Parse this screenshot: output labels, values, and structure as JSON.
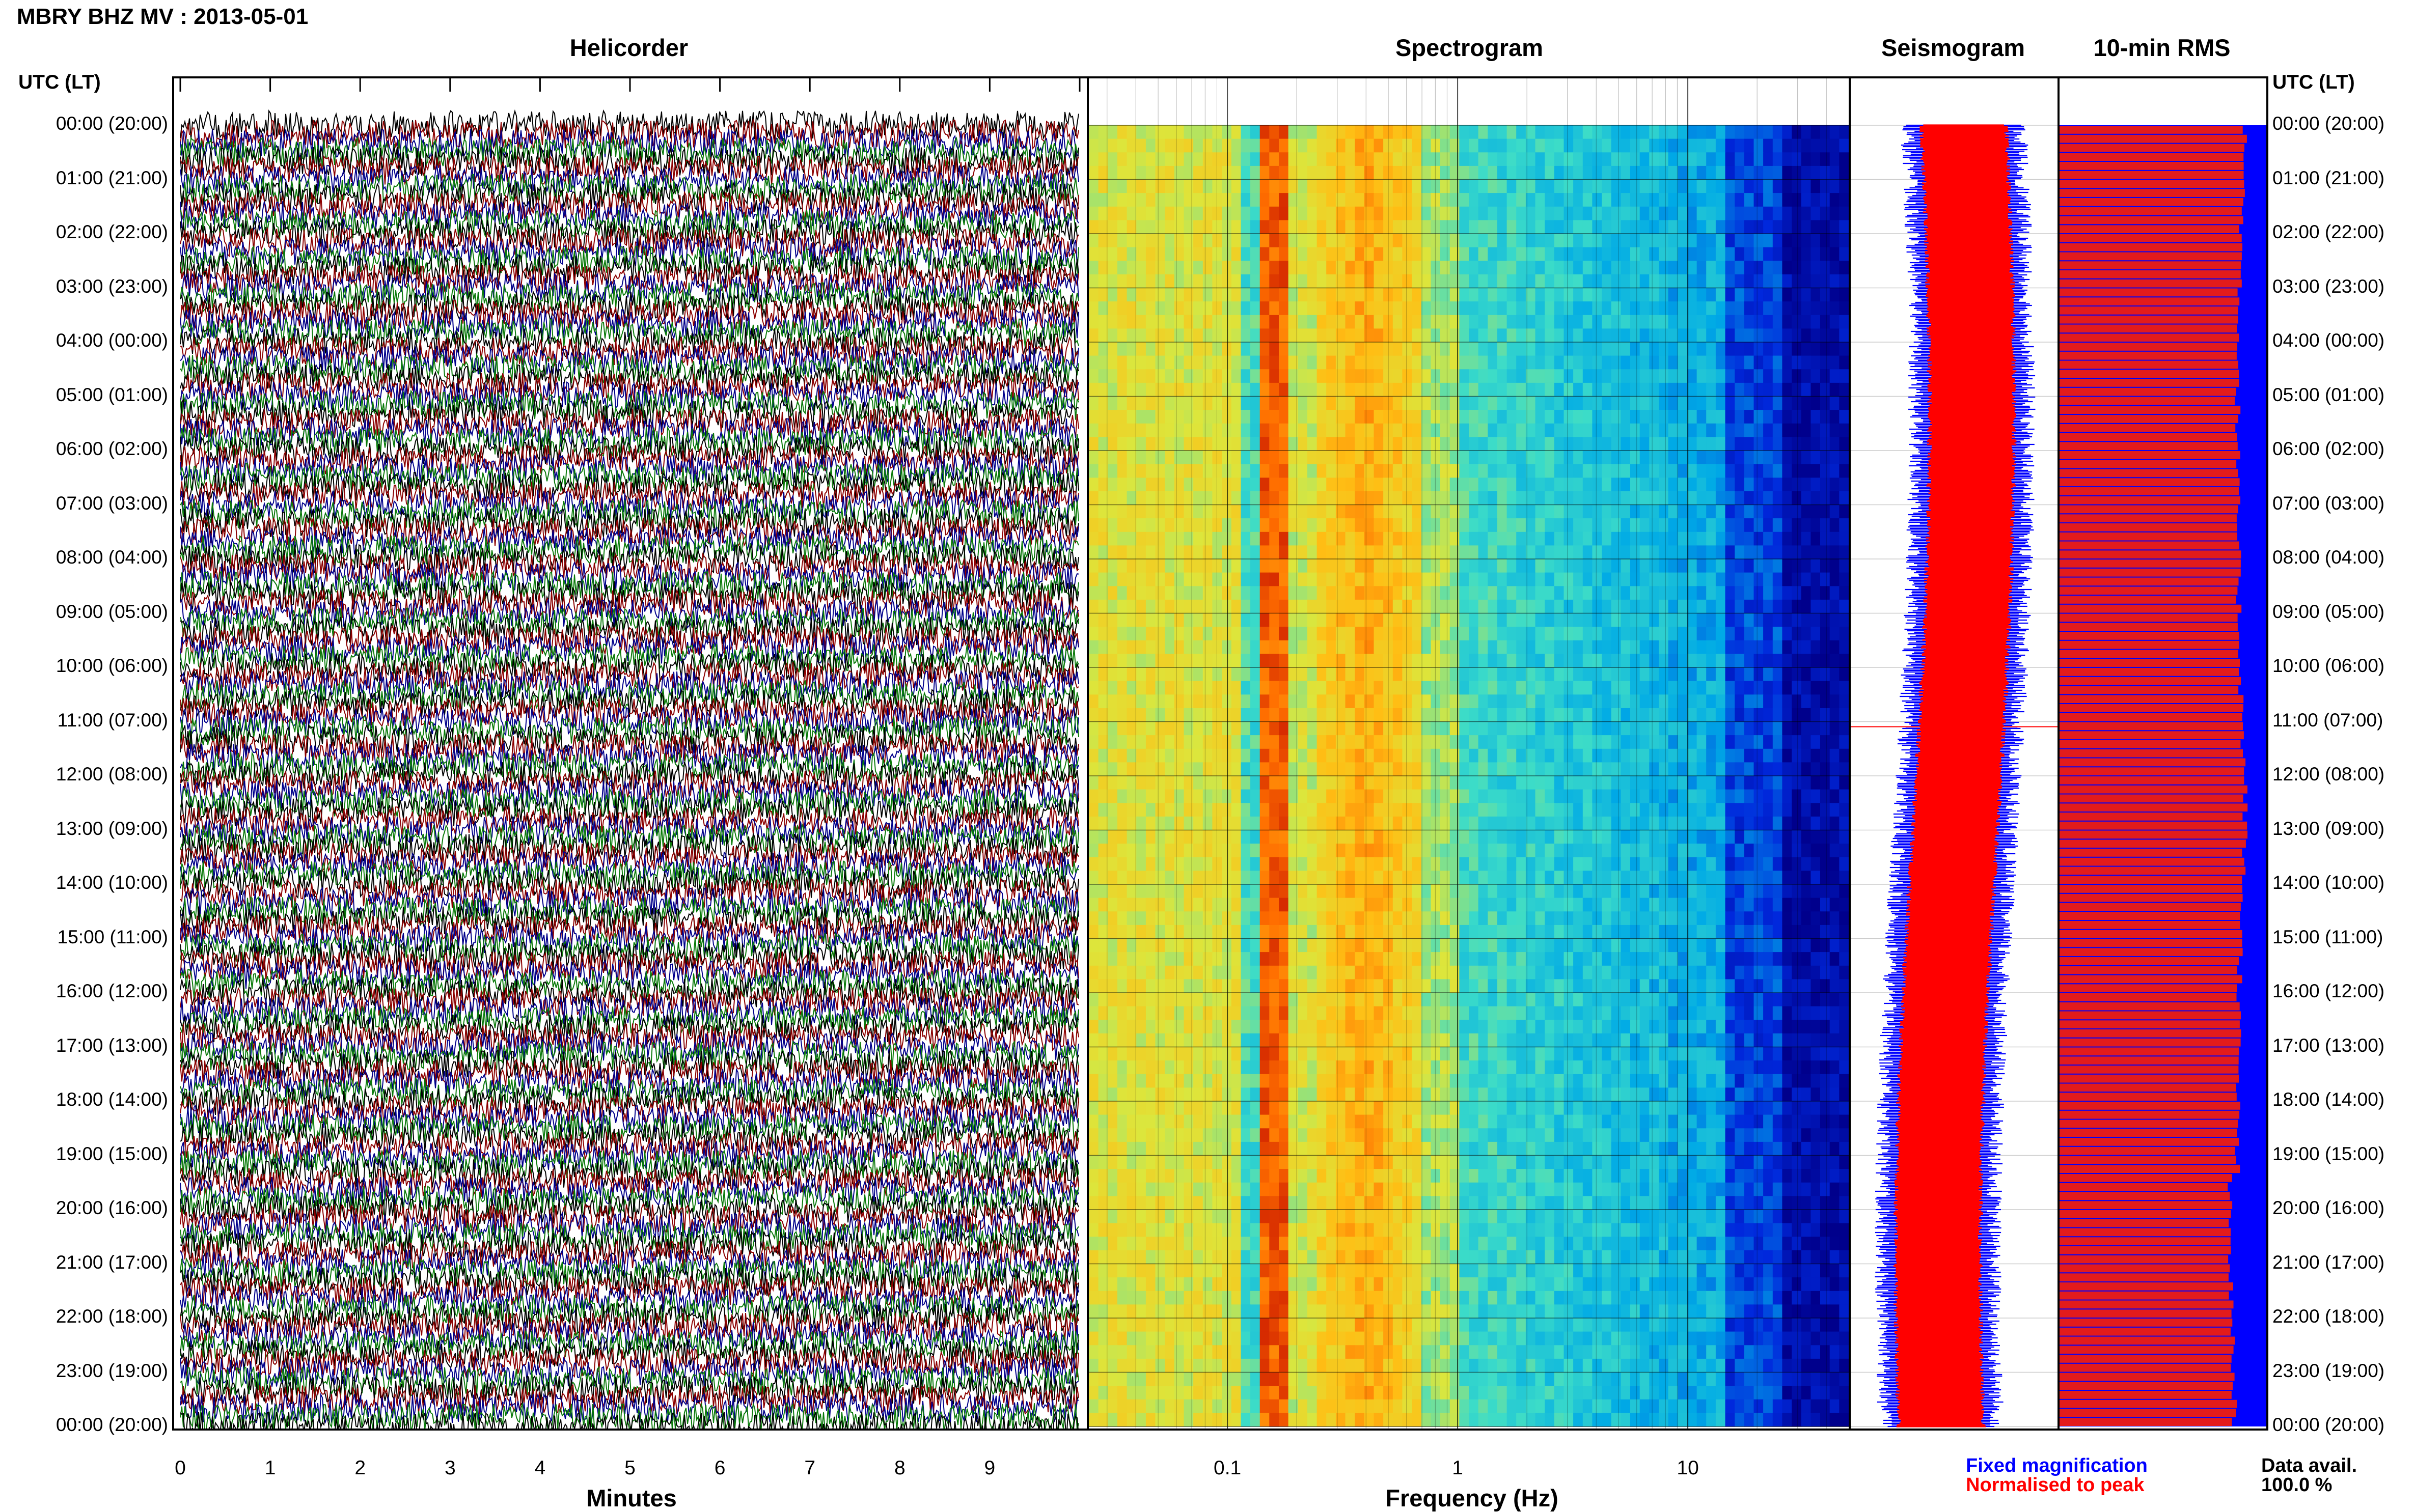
{
  "header": {
    "title": "MBRY BHZ MV : 2013-05-01"
  },
  "panels": {
    "helicorder": "Helicorder",
    "spectrogram": "Spectrogram",
    "seismogram": "Seismogram",
    "rms": "10-min RMS"
  },
  "utc_label": "UTC (LT)",
  "time_labels": [
    "00:00 (20:00)",
    "01:00 (21:00)",
    "02:00 (22:00)",
    "03:00 (23:00)",
    "04:00 (00:00)",
    "05:00 (01:00)",
    "06:00 (02:00)",
    "07:00 (03:00)",
    "08:00 (04:00)",
    "09:00 (05:00)",
    "10:00 (06:00)",
    "11:00 (07:00)",
    "12:00 (08:00)",
    "13:00 (09:00)",
    "14:00 (10:00)",
    "15:00 (11:00)",
    "16:00 (12:00)",
    "17:00 (13:00)",
    "18:00 (14:00)",
    "19:00 (15:00)",
    "20:00 (16:00)",
    "21:00 (17:00)",
    "22:00 (18:00)",
    "23:00 (19:00)",
    "00:00 (20:00)"
  ],
  "helicorder_axis": {
    "title": "Minutes",
    "ticks": [
      "0",
      "1",
      "2",
      "3",
      "4",
      "5",
      "6",
      "7",
      "8",
      "9"
    ]
  },
  "spectrogram_axis": {
    "title": "Frequency (Hz)",
    "ticks": [
      "0.1",
      "1",
      "10"
    ]
  },
  "legend": {
    "fixed": "Fixed magnification",
    "normalised": "Normalised to peak",
    "data_avail_label": "Data avail.",
    "data_avail_value": "100.0 %"
  },
  "colors": {
    "trace_cycle": [
      "#000000",
      "#8b0000",
      "#00008b",
      "#0a7a0a"
    ],
    "seis_fixed": "#0000ff",
    "seis_norm": "#ff0000",
    "rms_bg": "#0000ff",
    "rms_bar": "#e31b1b"
  },
  "chart_data": {
    "type": "heatmap",
    "x_min_minutes": 0,
    "x_max_minutes": 10,
    "freq_range_hz": [
      0.025,
      50
    ],
    "freq_scale": "log",
    "dominant_bands_hz": [
      0.15,
      0.35,
      0.5
    ],
    "rms_intervals": 144,
    "rms_fraction_approx": 0.9
  }
}
